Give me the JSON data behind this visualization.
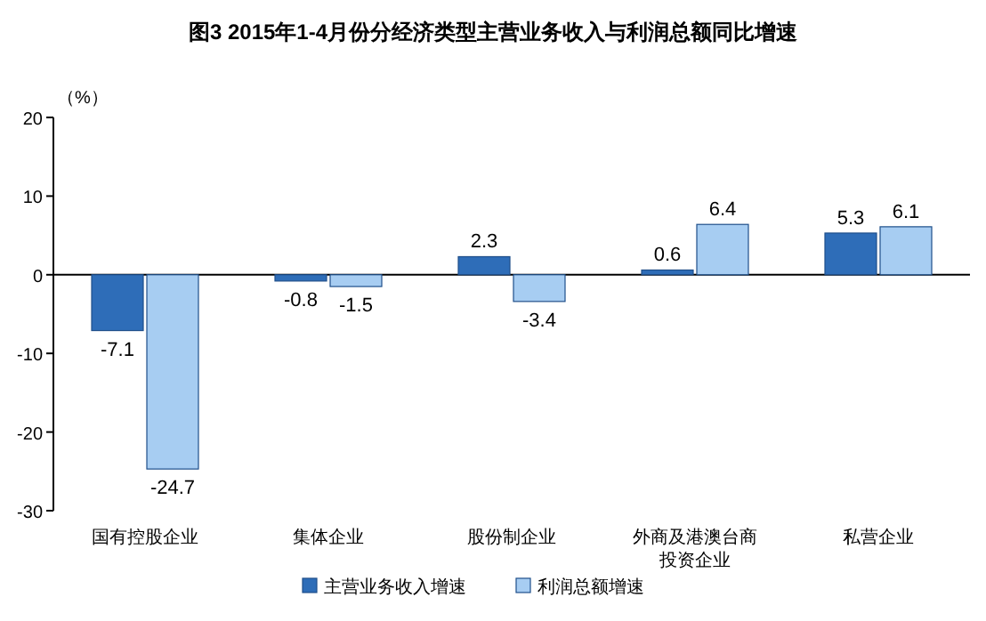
{
  "chart_data": {
    "type": "bar",
    "title": "图3  2015年1-4月份分经济类型主营业务收入与利润总额同比增速",
    "ylabel": "（%）",
    "categories": [
      "国有控股企业",
      "集体企业",
      "股份制企业",
      "外商及港澳台商投资企业",
      "私营企业"
    ],
    "series": [
      {
        "name": "主营业务收入增速",
        "color": "#2e6db8",
        "values": [
          -7.1,
          -0.8,
          2.3,
          0.6,
          5.3
        ]
      },
      {
        "name": "利润总额增速",
        "color": "#a7cdf2",
        "values": [
          -24.7,
          -1.5,
          -3.4,
          6.4,
          6.1
        ]
      }
    ],
    "ylim": [
      -30,
      20
    ],
    "yticks": [
      -30,
      -20,
      -10,
      0,
      10,
      20
    ],
    "data_labels": true,
    "legend": "bottom"
  }
}
